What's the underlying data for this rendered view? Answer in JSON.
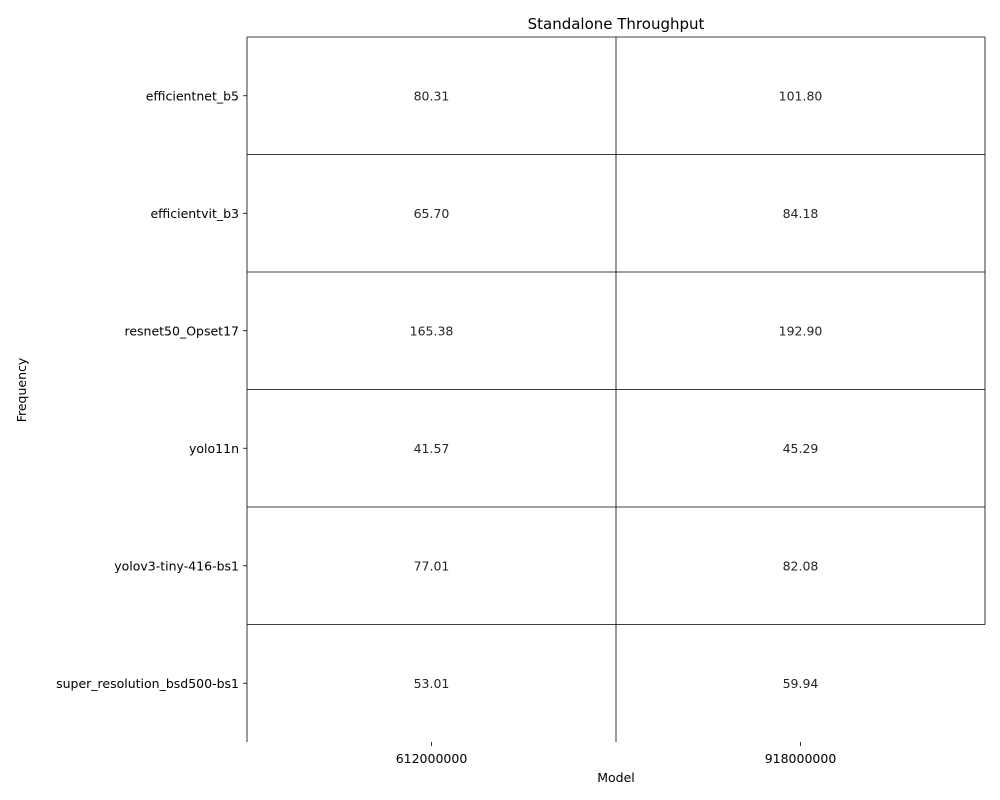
{
  "chart_data": {
    "type": "table",
    "title": "Standalone Throughput",
    "xlabel": "Model",
    "ylabel": "Frequency",
    "columns": [
      "612000000",
      "918000000"
    ],
    "rows": [
      "efficientnet_b5",
      "efficientvit_b3",
      "resnet50_Opset17",
      "yolo11n",
      "yolov3-tiny-416-bs1",
      "super_resolution_bsd500-bs1"
    ],
    "cells": [
      [
        "80.31",
        "101.80"
      ],
      [
        "65.70",
        "84.18"
      ],
      [
        "165.38",
        "192.90"
      ],
      [
        "41.57",
        "45.29"
      ],
      [
        "77.01",
        "82.08"
      ],
      [
        "53.01",
        "59.94"
      ]
    ],
    "colors": {
      "line": "#000000",
      "text": "#262626",
      "cell_bg": "#ffffff"
    }
  }
}
